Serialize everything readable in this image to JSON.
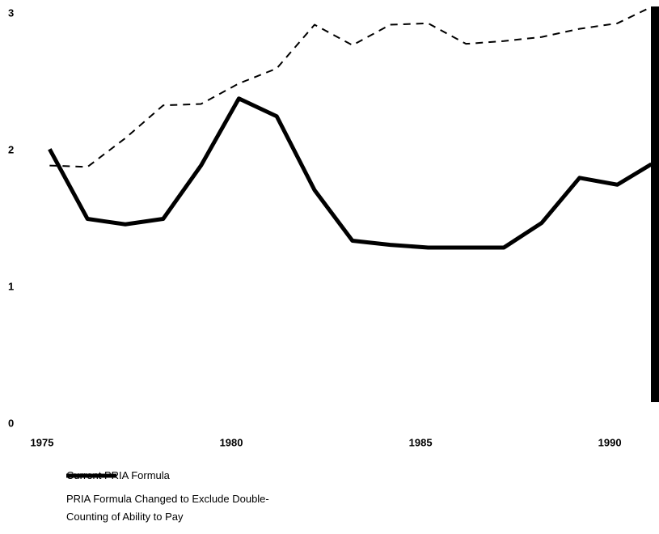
{
  "chart_data": {
    "type": "line",
    "x": [
      1975.2,
      1976.2,
      1977.2,
      1978.2,
      1979.2,
      1980.2,
      1981.2,
      1982.2,
      1983.2,
      1984.2,
      1985.2,
      1986.2,
      1987.2,
      1988.2,
      1989.2,
      1990.2,
      1991.1
    ],
    "series": [
      {
        "name": "Current PRIA Formula",
        "color": "#000000",
        "dash": false,
        "values": [
          2.01,
          1.5,
          1.46,
          1.5,
          1.89,
          2.38,
          2.25,
          1.71,
          1.34,
          1.31,
          1.29,
          1.29,
          1.29,
          1.47,
          1.8,
          1.75,
          1.9
        ]
      },
      {
        "name": "PRIA Formula Changed to Exclude Double-Counting of Ability to Pay",
        "color": "#000000",
        "dash": true,
        "values": [
          1.89,
          1.88,
          2.09,
          2.33,
          2.34,
          2.49,
          2.6,
          2.92,
          2.77,
          2.92,
          2.93,
          2.78,
          2.8,
          2.83,
          2.89,
          2.93,
          3.05
        ]
      }
    ],
    "xlim": [
      1975,
      1991.3
    ],
    "xticks": [
      1975,
      1980,
      1985,
      1990
    ],
    "ylim": [
      0,
      3
    ],
    "yticks": [
      0,
      1,
      2,
      3
    ],
    "grid": false
  }
}
